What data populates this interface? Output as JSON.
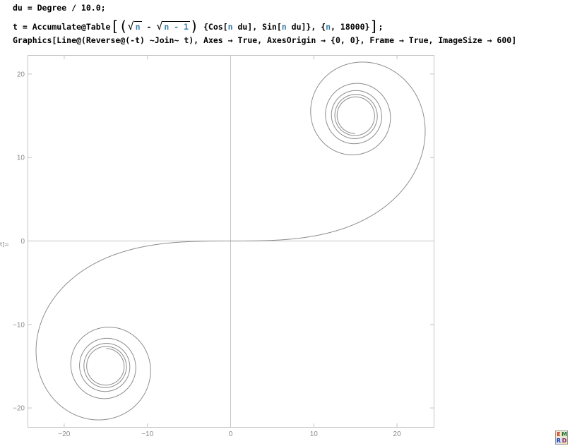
{
  "cell": {
    "line1": "du = Degree / 10.0;",
    "line2": {
      "prefix": "t = Accumulate@Table",
      "sqrt_n": "n",
      "minus": " - ",
      "sqrt_n1": "n - 1",
      "middle": "{Cos[",
      "var1": "n",
      "mid2": " du], Sin[",
      "var2": "n",
      "mid3": " du]}, {",
      "var3": "n",
      "suffix": ", 18000}",
      "end": ";"
    },
    "line3": "Graphics[Line@(Reverse@(-t) ~Join~ t), Axes → True, AxesOrigin → {0, 0}, Frame → True, ImageSize → 600]"
  },
  "output_label": "t]=",
  "plot": {
    "x_ticks": [
      "−20",
      "−10",
      "0",
      "10",
      "20"
    ],
    "y_ticks": [
      "20",
      "10",
      "0",
      "−10",
      "−20"
    ],
    "line_color": "#8c8c8c",
    "axis_color": "#c4c4c4",
    "frame_color": "#c4c4c4"
  },
  "chart_data": {
    "type": "line",
    "title": "",
    "xlabel": "",
    "ylabel": "",
    "xlim": [
      -24.5,
      24.5
    ],
    "ylim": [
      -22.5,
      22.5
    ],
    "x_tick_values": [
      -20,
      -10,
      0,
      10,
      20
    ],
    "y_tick_values": [
      20,
      10,
      0,
      -10,
      -20
    ],
    "series": [
      {
        "name": "t = Accumulate of (sqrt(n) - sqrt(n-1)) {Cos[n du], Sin[n du]}, mirrored by Reverse@(-t)",
        "step_degrees": 0.1,
        "points": 18000,
        "spiral_center_upper": [
          14.9,
          15.1
        ],
        "spiral_center_lower": [
          -14.9,
          -15.1
        ],
        "outer_loop_x_extent": [
          -23.5,
          23.5
        ],
        "outer_loop_y_extent": [
          -21.2,
          21.2
        ]
      }
    ]
  },
  "logo": [
    "E",
    "M",
    "R",
    "D"
  ]
}
